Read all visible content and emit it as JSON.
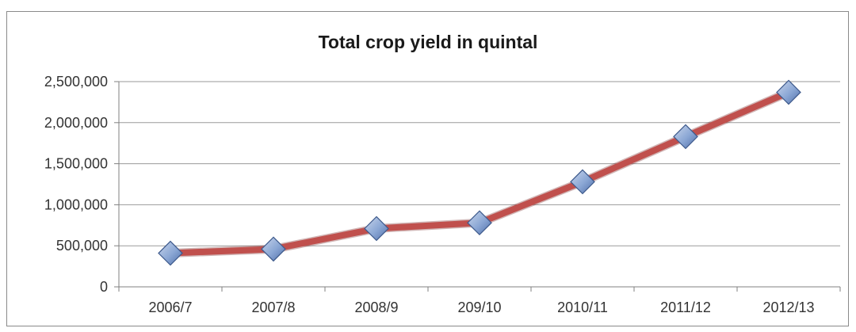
{
  "chart_data": {
    "type": "line",
    "title": "Total crop yield in quintal",
    "categories": [
      "2006/7",
      "2007/8",
      "2008/9",
      "209/10",
      "2010/11",
      "2011/12",
      "2012/13"
    ],
    "series": [
      {
        "values": [
          410000,
          460000,
          710000,
          780000,
          1280000,
          1830000,
          2370000
        ]
      }
    ],
    "xlabel": "",
    "ylabel": "",
    "ylim": [
      0,
      2500000
    ],
    "yticks": [
      0,
      500000,
      1000000,
      1500000,
      2000000,
      2500000
    ],
    "ytick_labels": [
      "0",
      "500,000",
      "1,000,000",
      "1,500,000",
      "2,000,000",
      "2,500,000"
    ],
    "grid": true,
    "legend": "none",
    "line_color": "#c0504d",
    "marker_color": "#8aa6d4",
    "marker": "diamond"
  }
}
